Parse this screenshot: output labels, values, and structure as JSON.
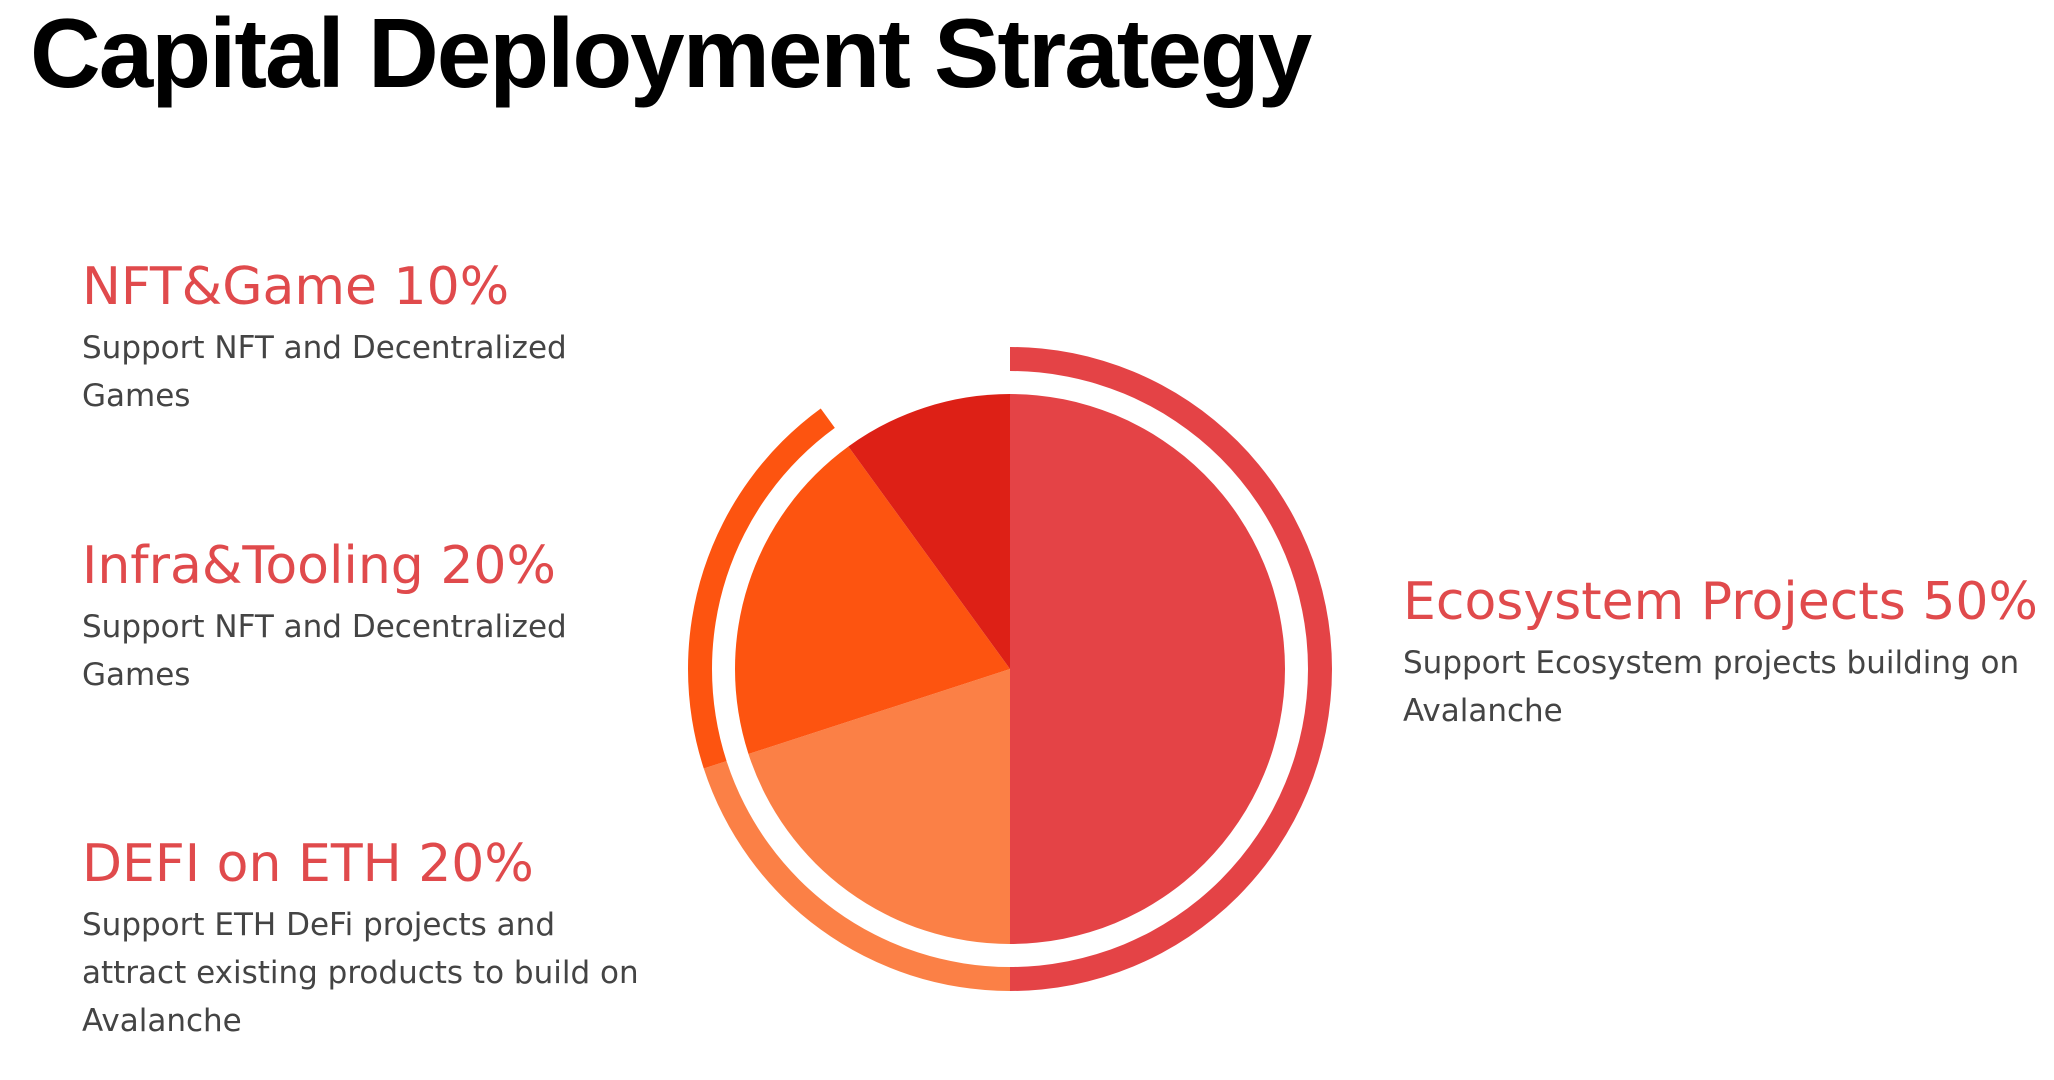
{
  "page": {
    "title": "Capital Deployment Strategy"
  },
  "colors": {
    "accent_text": "#e04a4c",
    "eco": "#e44346",
    "defi": "#fb8046",
    "infra": "#fd5410",
    "nft": "#dd2016"
  },
  "items": {
    "nft": {
      "title": "NFT&Game 10%",
      "desc": "Support NFT and Decentralized Games"
    },
    "infra": {
      "title": "Infra&Tooling 20%",
      "desc": "Support NFT and Decentralized Games"
    },
    "defi": {
      "title": "DEFI on ETH 20%",
      "desc": "Support ETH DeFi projects and attract existing products to build on Avalanche"
    },
    "eco": {
      "title": "Ecosystem Projects 50%",
      "desc": "Support Ecosystem projects building on Avalanche"
    }
  },
  "chart_data": {
    "type": "pie",
    "title": "",
    "categories": [
      "Ecosystem Projects",
      "DEFI on ETH",
      "Infra&Tooling",
      "NFT&Game"
    ],
    "values": [
      50,
      20,
      20,
      10
    ],
    "unit": "%",
    "colors": [
      "#e44346",
      "#fb8046",
      "#fd5410",
      "#dd2016"
    ],
    "outer_ring": true
  }
}
